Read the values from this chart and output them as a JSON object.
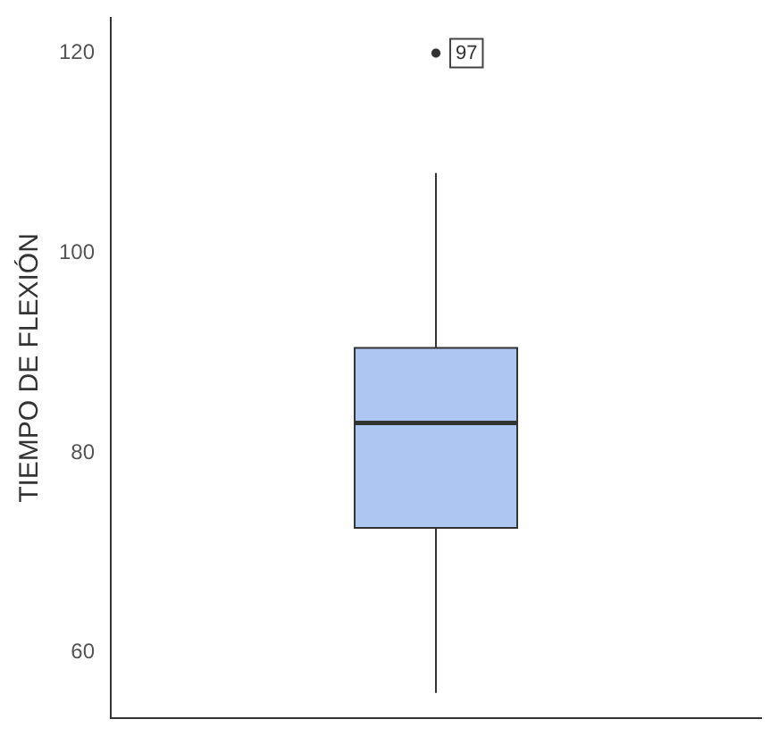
{
  "chart_data": {
    "type": "box",
    "ylabel": "TIEMPO DE FLEXIÓN",
    "categories": [
      null
    ],
    "boxes": [
      {
        "low": 56,
        "q1": 72.5,
        "median": 83,
        "q3": 90.5,
        "high": 108,
        "outliers": [
          120
        ]
      }
    ],
    "color": "#aec7f2",
    "ylim": [
      53.5,
      123.5
    ],
    "yticks": [
      60,
      80,
      100,
      120
    ],
    "grid": false,
    "annotations": [
      {
        "text": "97",
        "y": 120
      }
    ]
  }
}
